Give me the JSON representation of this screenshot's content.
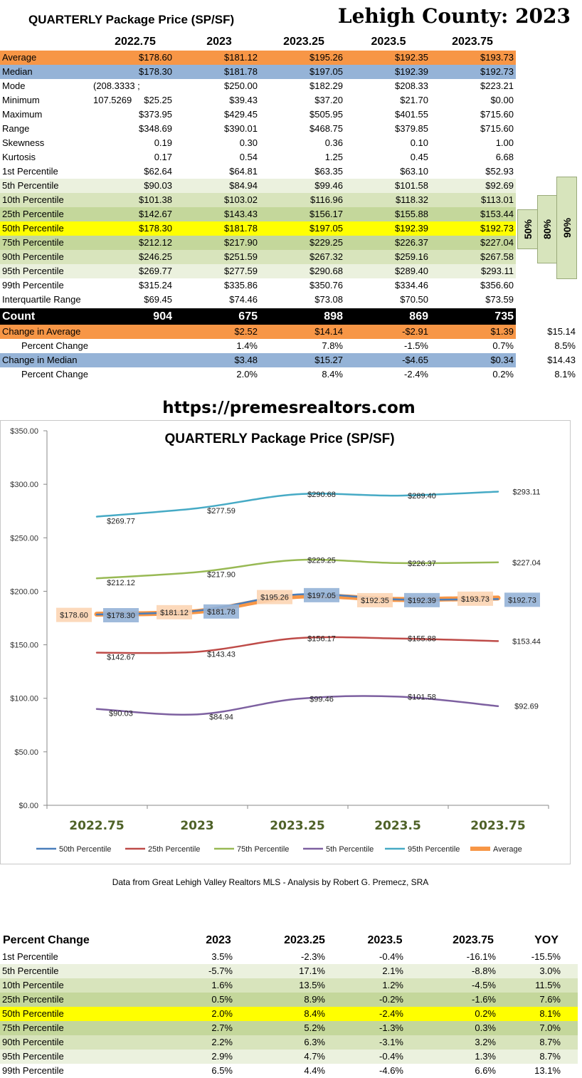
{
  "title": "QUARTERLY Package Price (SP/SF)",
  "county_title": "Lehigh County:  2023",
  "columns": [
    "2022.75",
    "2023",
    "2023.25",
    "2023.5",
    "2023.75"
  ],
  "colors": {
    "orange": "#f79646",
    "blue": "#95b3d7",
    "green_light": "#ebf1de",
    "green_mid": "#d8e4bc",
    "green_dark": "#c4d79b",
    "yellow": "#ffff00",
    "black": "#000000"
  },
  "stats_rows": [
    {
      "label": "Average",
      "values": [
        "$178.60",
        "$181.12",
        "$195.26",
        "$192.35",
        "$193.73"
      ],
      "bg": "#f79646"
    },
    {
      "label": "Median",
      "values": [
        "$178.30",
        "$181.78",
        "$197.05",
        "$192.39",
        "$192.73"
      ],
      "bg": "#95b3d7"
    },
    {
      "label": "Mode",
      "values": [
        "(208.3333 ; 107.5269",
        "$250.00",
        "$182.29",
        "$208.33",
        "$223.21"
      ],
      "bg": ""
    },
    {
      "label": "Minimum",
      "values": [
        "$25.25",
        "$39.43",
        "$37.20",
        "$21.70",
        "$0.00"
      ],
      "bg": ""
    },
    {
      "label": "Maximum",
      "values": [
        "$373.95",
        "$429.45",
        "$505.95",
        "$401.55",
        "$715.60"
      ],
      "bg": ""
    },
    {
      "label": "Range",
      "values": [
        "$348.69",
        "$390.01",
        "$468.75",
        "$379.85",
        "$715.60"
      ],
      "bg": ""
    },
    {
      "label": "Skewness",
      "values": [
        "0.19",
        "0.30",
        "0.36",
        "0.10",
        "1.00"
      ],
      "bg": ""
    },
    {
      "label": "Kurtosis",
      "values": [
        "0.17",
        "0.54",
        "1.25",
        "0.45",
        "6.68"
      ],
      "bg": ""
    },
    {
      "label": "1st Percentile",
      "values": [
        "$62.64",
        "$64.81",
        "$63.35",
        "$63.10",
        "$52.93"
      ],
      "bg": ""
    },
    {
      "label": "5th Percentile",
      "values": [
        "$90.03",
        "$84.94",
        "$99.46",
        "$101.58",
        "$92.69"
      ],
      "bg": "#ebf1de"
    },
    {
      "label": "10th Percentile",
      "values": [
        "$101.38",
        "$103.02",
        "$116.96",
        "$118.32",
        "$113.01"
      ],
      "bg": "#d8e4bc"
    },
    {
      "label": "25th Percentile",
      "values": [
        "$142.67",
        "$143.43",
        "$156.17",
        "$155.88",
        "$153.44"
      ],
      "bg": "#c4d79b"
    },
    {
      "label": "50th Percentile",
      "values": [
        "$178.30",
        "$181.78",
        "$197.05",
        "$192.39",
        "$192.73"
      ],
      "bg": "#ffff00"
    },
    {
      "label": "75th Percentile",
      "values": [
        "$212.12",
        "$217.90",
        "$229.25",
        "$226.37",
        "$227.04"
      ],
      "bg": "#c4d79b"
    },
    {
      "label": "90th Percentile",
      "values": [
        "$246.25",
        "$251.59",
        "$267.32",
        "$259.16",
        "$267.58"
      ],
      "bg": "#d8e4bc"
    },
    {
      "label": "95th Percentile",
      "values": [
        "$269.77",
        "$277.59",
        "$290.68",
        "$289.40",
        "$293.11"
      ],
      "bg": "#ebf1de"
    },
    {
      "label": "99th Percentile",
      "values": [
        "$315.24",
        "$335.86",
        "$350.76",
        "$334.46",
        "$356.60"
      ],
      "bg": ""
    },
    {
      "label": "Interquartile Range",
      "values": [
        "$69.45",
        "$74.46",
        "$73.08",
        "$70.50",
        "$73.59"
      ],
      "bg": ""
    }
  ],
  "count_row": {
    "label": "Count",
    "values": [
      "904",
      "675",
      "898",
      "869",
      "735"
    ]
  },
  "change_rows": [
    {
      "label": "Change in Average",
      "values": [
        "",
        "$2.52",
        "$14.14",
        "-$2.91",
        "$1.39"
      ],
      "extra": "$15.14",
      "bg": "#f79646",
      "indent": false
    },
    {
      "label": "Percent Change",
      "values": [
        "",
        "1.4%",
        "7.8%",
        "-1.5%",
        "0.7%"
      ],
      "extra": "8.5%",
      "bg": "",
      "indent": true
    },
    {
      "label": "Change in Median",
      "values": [
        "",
        "$3.48",
        "$15.27",
        "-$4.65",
        "$0.34"
      ],
      "extra": "$14.43",
      "bg": "#95b3d7",
      "indent": false
    },
    {
      "label": "Percent Change",
      "values": [
        "",
        "2.0%",
        "8.4%",
        "-2.4%",
        "0.2%"
      ],
      "extra": "8.1%",
      "bg": "",
      "indent": true
    }
  ],
  "side_labels": [
    "50%",
    "80%",
    "90%"
  ],
  "url": "https://premesrealtors.com",
  "credit": "Data from Great Lehigh Valley Realtors MLS - Analysis by Robert G. Premecz, SRA",
  "chart_data": {
    "type": "line",
    "title": "QUARTERLY Package Price (SP/SF)",
    "categories": [
      "2022.75",
      "2023",
      "2023.25",
      "2023.5",
      "2023.75"
    ],
    "ylim": [
      0,
      350
    ],
    "yticks": [
      "$0.00",
      "$50.00",
      "$100.00",
      "$150.00",
      "$200.00",
      "$250.00",
      "$300.00",
      "$350.00"
    ],
    "ytick_values": [
      0,
      50,
      100,
      150,
      200,
      250,
      300,
      350
    ],
    "grid": false,
    "legend_position": "bottom",
    "series": [
      {
        "name": "50th Percentile",
        "values": [
          178.3,
          181.78,
          197.05,
          192.39,
          192.73
        ],
        "labels": [
          "$178.30",
          "$181.78",
          "$197.05",
          "$192.39",
          "$192.73"
        ],
        "color": "#4a7ebb",
        "label_bg": "#95b3d7"
      },
      {
        "name": "25th Percentile",
        "values": [
          142.67,
          143.43,
          156.17,
          155.88,
          153.44
        ],
        "labels": [
          "$142.67",
          "$143.43",
          "$156.17",
          "$155.88",
          "$153.44"
        ],
        "color": "#be4b48"
      },
      {
        "name": "75th Percentile",
        "values": [
          212.12,
          217.9,
          229.25,
          226.37,
          227.04
        ],
        "labels": [
          "$212.12",
          "$217.90",
          "$229.25",
          "$226.37",
          "$227.04"
        ],
        "color": "#98b954"
      },
      {
        "name": "5th Percentile",
        "values": [
          90.03,
          84.94,
          99.46,
          101.58,
          92.69
        ],
        "labels": [
          "$90.03",
          "$84.94",
          "$99.46",
          "$101.58",
          "$92.69"
        ],
        "color": "#7d60a0"
      },
      {
        "name": "95th Percentile",
        "values": [
          269.77,
          277.59,
          290.68,
          289.4,
          293.11
        ],
        "labels": [
          "$269.77",
          "$277.59",
          "$290.68",
          "$289.40",
          "$293.11"
        ],
        "color": "#46aac5"
      },
      {
        "name": "Average",
        "values": [
          178.6,
          181.12,
          195.26,
          192.35,
          193.73
        ],
        "labels": [
          "$178.60",
          "$181.12",
          "$195.26",
          "$192.35",
          "$193.73"
        ],
        "color": "#f79646",
        "label_bg": "#fcd5b4"
      }
    ]
  },
  "pct_table": {
    "header": "Percent Change",
    "columns": [
      "2023",
      "2023.25",
      "2023.5",
      "2023.75",
      "YOY"
    ],
    "rows": [
      {
        "label": "1st Percentile",
        "values": [
          "3.5%",
          "-2.3%",
          "-0.4%",
          "-16.1%",
          "-15.5%"
        ],
        "bg": ""
      },
      {
        "label": "5th Percentile",
        "values": [
          "-5.7%",
          "17.1%",
          "2.1%",
          "-8.8%",
          "3.0%"
        ],
        "bg": "#ebf1de"
      },
      {
        "label": "10th Percentile",
        "values": [
          "1.6%",
          "13.5%",
          "1.2%",
          "-4.5%",
          "11.5%"
        ],
        "bg": "#d8e4bc"
      },
      {
        "label": "25th Percentile",
        "values": [
          "0.5%",
          "8.9%",
          "-0.2%",
          "-1.6%",
          "7.6%"
        ],
        "bg": "#c4d79b"
      },
      {
        "label": "50th Percentile",
        "values": [
          "2.0%",
          "8.4%",
          "-2.4%",
          "0.2%",
          "8.1%"
        ],
        "bg": "#ffff00"
      },
      {
        "label": "75th Percentile",
        "values": [
          "2.7%",
          "5.2%",
          "-1.3%",
          "0.3%",
          "7.0%"
        ],
        "bg": "#c4d79b"
      },
      {
        "label": "90th Percentile",
        "values": [
          "2.2%",
          "6.3%",
          "-3.1%",
          "3.2%",
          "8.7%"
        ],
        "bg": "#d8e4bc"
      },
      {
        "label": "95th Percentile",
        "values": [
          "2.9%",
          "4.7%",
          "-0.4%",
          "1.3%",
          "8.7%"
        ],
        "bg": "#ebf1de"
      },
      {
        "label": "99th Percentile",
        "values": [
          "6.5%",
          "4.4%",
          "-4.6%",
          "6.6%",
          "13.1%"
        ],
        "bg": ""
      }
    ]
  }
}
